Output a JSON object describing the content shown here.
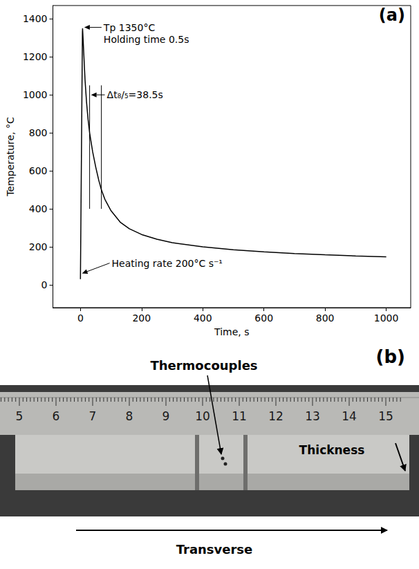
{
  "chart_data": {
    "type": "line",
    "panel_label": "(a)",
    "xlabel": "Time, s",
    "ylabel": "Temperature, °C",
    "x": [
      0,
      6.5,
      7,
      7.5,
      10,
      15,
      20,
      25,
      30,
      40,
      50,
      60,
      68.5,
      80,
      100,
      130,
      160,
      200,
      250,
      300,
      400,
      500,
      600,
      700,
      800,
      900,
      1000
    ],
    "values": [
      30,
      1330,
      1350,
      1350,
      1250,
      1080,
      960,
      870,
      800,
      700,
      620,
      550,
      500,
      450,
      390,
      330,
      295,
      265,
      240,
      222,
      200,
      185,
      174,
      165,
      158,
      152,
      147
    ],
    "color": "#000000",
    "xlim": [
      -90,
      1080
    ],
    "ylim": [
      -120,
      1470
    ],
    "xticks": [
      0,
      200,
      400,
      600,
      800,
      1000
    ],
    "yticks": [
      0,
      200,
      400,
      600,
      800,
      1000,
      1200,
      1400
    ],
    "grid": false,
    "dt_lines": {
      "x": [
        30,
        68.5
      ],
      "y": [
        400,
        1050
      ]
    },
    "annotations": [
      {
        "text": [
          "Tp 1350°C",
          "Holding time 0.5s"
        ],
        "at": [
          8,
          1355
        ]
      },
      {
        "text": [
          "Δt₈/₅=38.5s"
        ],
        "at": [
          30,
          1000
        ]
      },
      {
        "text": [
          "Heating rate 200°C s⁻¹"
        ],
        "at": [
          0.5,
          60
        ]
      }
    ]
  },
  "photo": {
    "panel_label": "(b)",
    "ruler_numbers": [
      5,
      6,
      7,
      8,
      9,
      10,
      11,
      12,
      13,
      14,
      15
    ],
    "labels": {
      "thermocouples": "Thermocouples",
      "thickness": "Thickness",
      "transverse": "Transverse"
    }
  }
}
